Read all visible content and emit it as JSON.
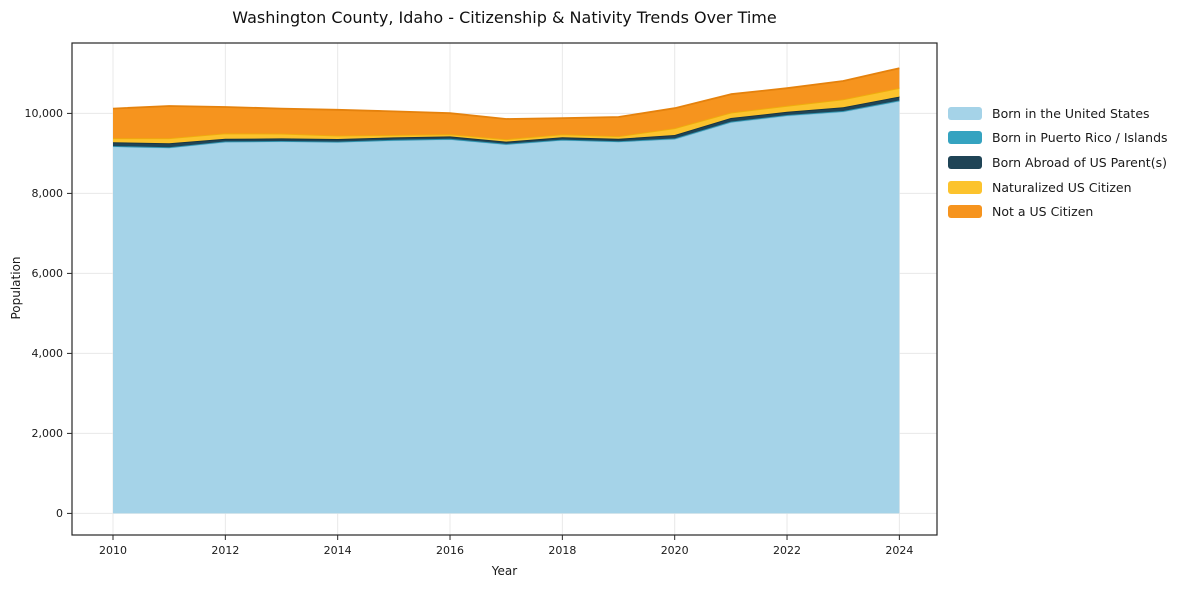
{
  "title": "Washington County, Idaho - Citizenship & Nativity Trends Over Time",
  "axis": {
    "xlabel": "Year",
    "ylabel": "Population"
  },
  "colors": {
    "background": "#ffffff",
    "plot_border": "#262626",
    "grid": "#e8e8e8",
    "tick_text": "#1a1a1a"
  },
  "chart_data": {
    "type": "area",
    "stacked": true,
    "title": "Washington County, Idaho - Citizenship & Nativity Trends Over Time",
    "xlabel": "Year",
    "ylabel": "Population",
    "x": [
      2010,
      2011,
      2012,
      2013,
      2014,
      2015,
      2016,
      2017,
      2018,
      2019,
      2020,
      2021,
      2022,
      2023,
      2024
    ],
    "series": [
      {
        "name": "Born in the United States",
        "color": "#a5d3e8",
        "edge": "#8fc4dc",
        "values": [
          9175,
          9145,
          9290,
          9300,
          9285,
          9330,
          9355,
          9230,
          9335,
          9295,
          9360,
          9780,
          9945,
          10045,
          10310
        ]
      },
      {
        "name": "Born in Puerto Rico / Islands",
        "color": "#35a3c0",
        "edge": "#2d92ad",
        "values": [
          10,
          10,
          10,
          10,
          10,
          10,
          10,
          10,
          10,
          10,
          15,
          15,
          15,
          15,
          15
        ]
      },
      {
        "name": "Born Abroad of US Parent(s)",
        "color": "#1f4456",
        "edge": "#173441",
        "values": [
          95,
          100,
          65,
          65,
          65,
          60,
          60,
          55,
          60,
          60,
          85,
          90,
          80,
          95,
          95
        ]
      },
      {
        "name": "Naturalized US Citizen",
        "color": "#fcc32d",
        "edge": "#eead0c",
        "values": [
          100,
          125,
          135,
          120,
          85,
          60,
          55,
          60,
          70,
          65,
          170,
          135,
          150,
          195,
          215
        ]
      },
      {
        "name": "Not a US Citizen",
        "color": "#f6941e",
        "edge": "#e5820d",
        "values": [
          740,
          805,
          660,
          625,
          645,
          590,
          525,
          505,
          405,
          480,
          500,
          460,
          440,
          460,
          495
        ]
      }
    ],
    "totals": [
      10120,
      10185,
      10160,
      10120,
      10090,
      10050,
      10005,
      9860,
      9880,
      9910,
      10130,
      10480,
      10630,
      10810,
      11130
    ],
    "xticks": [
      2010,
      2012,
      2014,
      2016,
      2018,
      2020,
      2022,
      2024
    ],
    "xtick_labels": [
      "2010",
      "2012",
      "2014",
      "2016",
      "2018",
      "2020",
      "2022",
      "2024"
    ],
    "yticks": [
      0,
      2000,
      4000,
      6000,
      8000,
      10000
    ],
    "ytick_labels": [
      "0",
      "2,000",
      "4,000",
      "6,000",
      "8,000",
      "10,000"
    ],
    "xlim": [
      2009.27,
      2024.67
    ],
    "ylim": [
      -540,
      11760
    ],
    "grid": true,
    "legend_position": "right"
  }
}
